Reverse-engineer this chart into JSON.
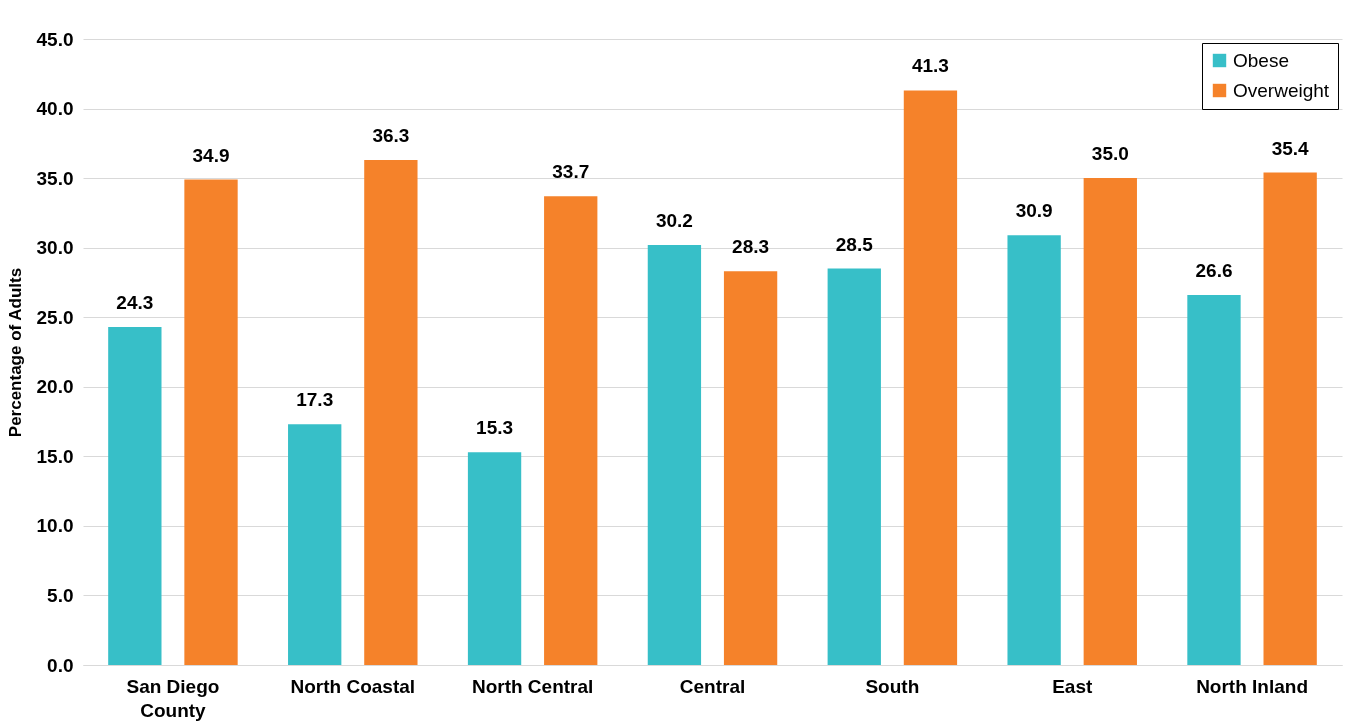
{
  "chart_data": {
    "type": "bar",
    "ylabel": "Percentage of Adults",
    "categories": [
      "San Diego County",
      "North Coastal",
      "North Central",
      "Central",
      "South",
      "East",
      "North Inland"
    ],
    "series": [
      {
        "name": "Obese",
        "color": "#37bfc8",
        "values": [
          24.3,
          17.3,
          15.3,
          30.2,
          28.5,
          30.9,
          26.6
        ],
        "value_labels": [
          "24.3",
          "17.3",
          "15.3",
          "30.2",
          "28.5",
          "30.9",
          "26.6"
        ]
      },
      {
        "name": "Overweight",
        "color": "#f5822a",
        "values": [
          34.9,
          36.3,
          33.7,
          28.3,
          41.3,
          35.0,
          35.4
        ],
        "value_labels": [
          "34.9",
          "36.3",
          "33.7",
          "28.3",
          "41.3",
          "35.0",
          "35.4"
        ]
      }
    ],
    "ylim": [
      0,
      45
    ],
    "yticks": [
      {
        "value": 0,
        "label": "0.0"
      },
      {
        "value": 5,
        "label": "5.0"
      },
      {
        "value": 10,
        "label": "10.0"
      },
      {
        "value": 15,
        "label": "15.0"
      },
      {
        "value": 20,
        "label": "20.0"
      },
      {
        "value": 25,
        "label": "25.0"
      },
      {
        "value": 30,
        "label": "30.0"
      },
      {
        "value": 35,
        "label": "35.0"
      },
      {
        "value": 40,
        "label": "40.0"
      },
      {
        "value": 45,
        "label": "45.0"
      }
    ],
    "grid": "y",
    "legend": "top right"
  }
}
